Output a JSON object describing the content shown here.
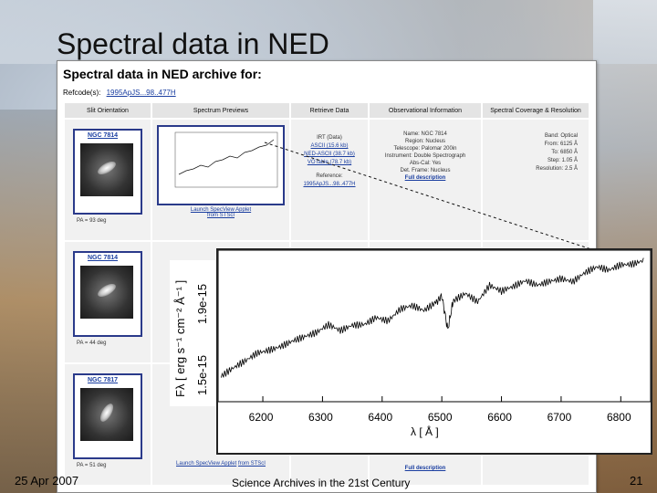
{
  "slide": {
    "title": "Spectral data in NED",
    "footer_date": "25 Apr 2007",
    "footer_center": "Science Archives in the 21st Century",
    "page_number": "21"
  },
  "ned_page": {
    "title": "Spectral data in NED archive for:",
    "refcode_label": "Refcode(s):",
    "refcode_value": "1995ApJS...98..477H",
    "columns": [
      "Slit Orientation",
      "Spectrum Previews",
      "Retrieve Data",
      "Observational Information",
      "Spectral Coverage & Resolution"
    ],
    "rows": [
      {
        "galaxy": "NGC 7814",
        "pa": "PA = 93 deg",
        "applet": "Launch SpecView Applet",
        "applet_from": "from STScI",
        "retrieve": [
          "IRT (Data)",
          "ASCII (15.6 kb)",
          "NED-ASCII (38.7 kb)",
          "VOTable (78.7 kb)"
        ],
        "reference_label": "Reference:",
        "reference_value": "1995ApJS...98..477H",
        "obs": [
          "Name: NGC 7814",
          "Region: Nucleus",
          "Telescope: Palomar 200in",
          "Instrument: Double Spectrograph",
          "Abs-Cal: Yes",
          "Det. Frame: Nucleus"
        ],
        "full_desc": "Full description",
        "coverage": [
          "Band: Optical",
          "From: 6125 Å",
          "To: 6850 Å",
          "Step: 1.05 Å",
          "Resolution: 2.5 Å"
        ]
      },
      {
        "galaxy": "NGC 7814",
        "pa": "PA = 44 deg"
      },
      {
        "galaxy": "NGC 7817",
        "pa": "PA = 51 deg",
        "applet": "Launch SpecView Applet",
        "applet_from": "from STScI",
        "full_desc": "Full description"
      }
    ]
  },
  "chart_data": {
    "type": "line",
    "xlabel": "λ [ Å ]",
    "ylabel": "F_λ [ erg s⁻¹ cm⁻² Å⁻¹ ]",
    "ylabel_text": "Fλ [ erg s⁻¹ cm⁻² Å⁻¹ ]",
    "yticks": [
      "1.5e-15",
      "1.9e-15"
    ],
    "xticks": [
      6200,
      6300,
      6400,
      6500,
      6600,
      6700,
      6800
    ],
    "xlim": [
      6125,
      6850
    ],
    "ylim": [
      1.42e-15,
      2.05e-15
    ],
    "series": [
      {
        "x": [
          6130,
          6150,
          6170,
          6190,
          6210,
          6230,
          6250,
          6270,
          6290,
          6310,
          6330,
          6350,
          6370,
          6390,
          6410,
          6430,
          6450,
          6470,
          6490,
          6500,
          6510,
          6520,
          6540,
          6560,
          6580,
          6600,
          6620,
          6640,
          6660,
          6680,
          6700,
          6720,
          6740,
          6760,
          6780,
          6800,
          6820,
          6840
        ],
        "y": [
          1.52e-15,
          1.55e-15,
          1.58e-15,
          1.62e-15,
          1.64e-15,
          1.66e-15,
          1.68e-15,
          1.69e-15,
          1.7e-15,
          1.73e-15,
          1.71e-15,
          1.74e-15,
          1.75e-15,
          1.78e-15,
          1.76e-15,
          1.8e-15,
          1.81e-15,
          1.79e-15,
          1.83e-15,
          1.86e-15,
          1.72e-15,
          1.85e-15,
          1.88e-15,
          1.84e-15,
          1.9e-15,
          1.87e-15,
          1.89e-15,
          1.92e-15,
          1.91e-15,
          1.93e-15,
          1.94e-15,
          1.92e-15,
          1.95e-15,
          1.97e-15,
          1.96e-15,
          1.99e-15,
          2e-15,
          2.02e-15
        ]
      }
    ]
  }
}
